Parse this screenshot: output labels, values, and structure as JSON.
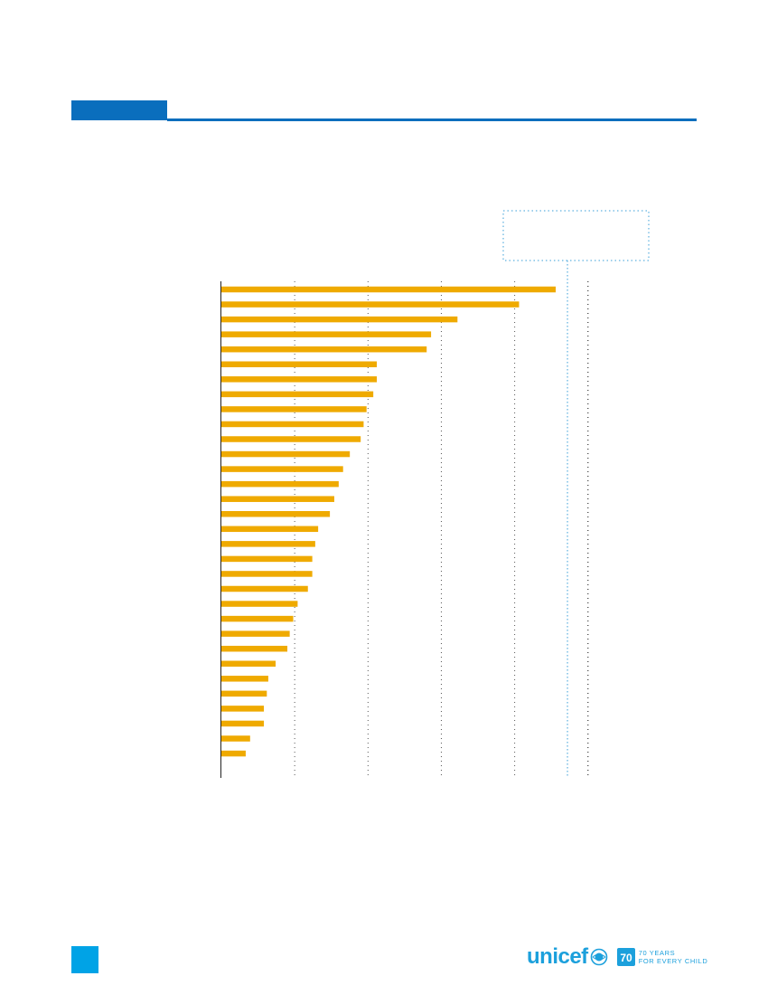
{
  "chart_data": {
    "type": "bar",
    "orientation": "horizontal",
    "values": [
      114,
      101.5,
      80.5,
      71.5,
      70,
      53,
      53,
      51.8,
      49.5,
      48.5,
      47.5,
      43.8,
      41.5,
      40,
      38.5,
      37,
      33,
      32,
      31,
      31,
      29.5,
      26,
      24.5,
      23.3,
      22.5,
      18.5,
      16,
      15.5,
      14.5,
      14.5,
      9.8,
      8.3
    ],
    "xlim": [
      0,
      130
    ],
    "grid": true,
    "bar_color": "#efaa00",
    "reference_lines": [
      118,
      125
    ],
    "reference_color": "#3a9fd8",
    "grid_color": "#555555",
    "annotation_box": true
  },
  "header": {
    "color": "#0a6ebd"
  },
  "footer": {
    "page_marker_color": "#00a3e6",
    "logo": {
      "wordmark": "unicef",
      "badge": "70",
      "tagline_line1": "70 YEARS",
      "tagline_line2": "FOR EVERY CHILD",
      "color": "#1ca0dc"
    }
  }
}
